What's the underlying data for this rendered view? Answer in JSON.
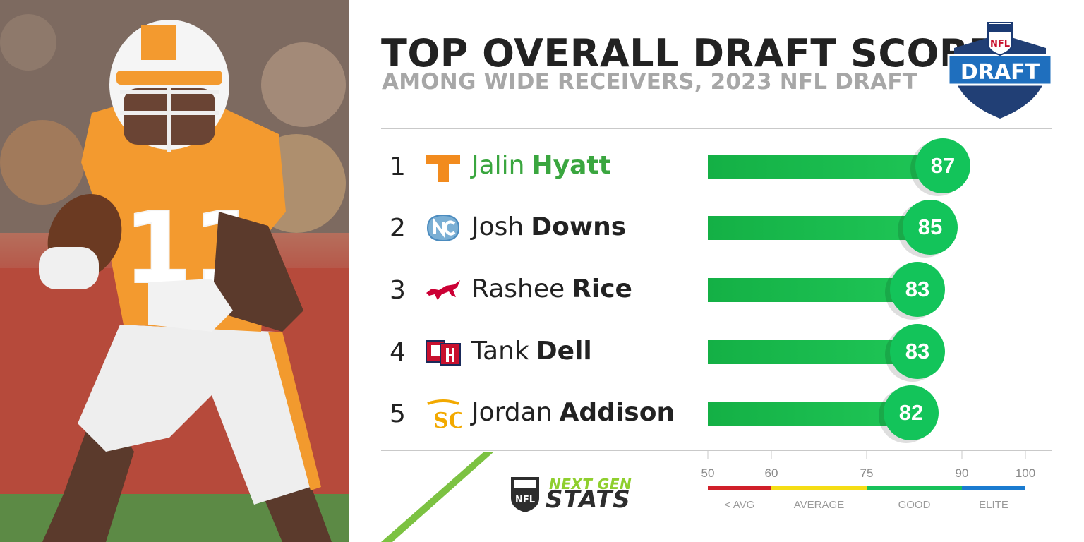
{
  "header": {
    "title": "TOP OVERALL DRAFT SCORE",
    "subtitle": "AMONG WIDE RECEIVERS, 2023 NFL DRAFT"
  },
  "draft_logo": {
    "top_text": "NFL",
    "main_text": "DRAFT",
    "icon": "nfl-draft-shield-logo"
  },
  "footer_logo": {
    "next_gen": "NEXT GEN",
    "stats": "STATS",
    "shield_text": "NFL"
  },
  "colors": {
    "title": "#222222",
    "subtitle": "#a7a7a7",
    "bar_green": "#13c45a",
    "highlight_name": "#3aa63f",
    "below_avg": "#d0202a",
    "average": "#f5dd15",
    "good": "#17c15a",
    "elite": "#1a7bd0"
  },
  "chart_data": {
    "type": "bar",
    "title": "TOP OVERALL DRAFT SCORE",
    "subtitle": "AMONG WIDE RECEIVERS, 2023 NFL DRAFT",
    "categories": [
      "Jalin Hyatt",
      "Josh Downs",
      "Rashee Rice",
      "Tank Dell",
      "Jordan Addison"
    ],
    "ranks": [
      "1",
      "2",
      "3",
      "4",
      "5"
    ],
    "first_names": [
      "Jalin",
      "Josh",
      "Rashee",
      "Tank",
      "Jordan"
    ],
    "last_names": [
      "Hyatt",
      "Downs",
      "Rice",
      "Dell",
      "Addison"
    ],
    "team_logos": [
      "tennessee-logo",
      "unc-logo",
      "smu-logo",
      "houston-logo",
      "usc-logo"
    ],
    "values": [
      87,
      85,
      83,
      83,
      82
    ],
    "xlim": [
      50,
      100
    ],
    "scale_ticks": [
      50,
      60,
      75,
      90,
      100
    ],
    "scale_bands": [
      {
        "label": "< AVG",
        "from": 50,
        "to": 60,
        "color": "#d0202a"
      },
      {
        "label": "AVERAGE",
        "from": 60,
        "to": 75,
        "color": "#f5dd15"
      },
      {
        "label": "GOOD",
        "from": 75,
        "to": 90,
        "color": "#17c15a"
      },
      {
        "label": "ELITE",
        "from": 90,
        "to": 100,
        "color": "#1a7bd0"
      }
    ]
  }
}
